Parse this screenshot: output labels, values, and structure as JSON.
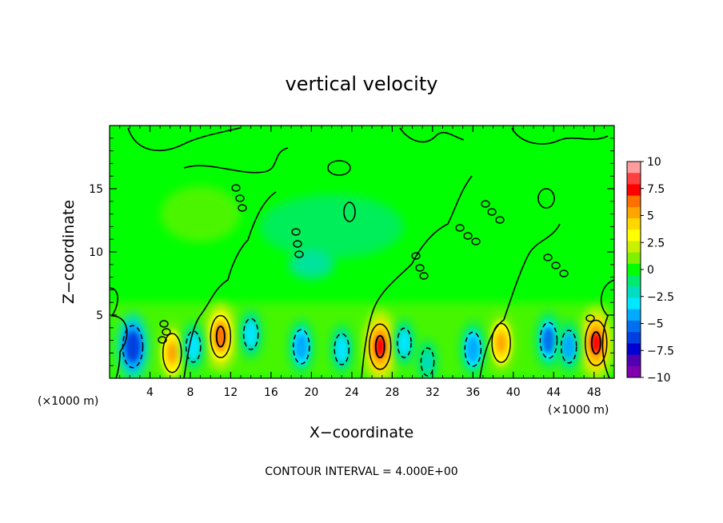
{
  "chart_data": {
    "type": "heatmap",
    "title": "vertical velocity",
    "xlabel": "X−coordinate",
    "ylabel": "Z−coordinate",
    "x_unit_left": "(×1000 m)",
    "x_unit_right": "(×1000 m)",
    "footer": "CONTOUR INTERVAL = 4.000E+00",
    "xlim": [
      0,
      50
    ],
    "ylim": [
      0,
      20
    ],
    "x_ticks": [
      4,
      8,
      12,
      16,
      20,
      24,
      28,
      32,
      36,
      40,
      44,
      48
    ],
    "x_tick_labels": [
      "4",
      "8",
      "12",
      "16",
      "20",
      "24",
      "28",
      "32",
      "36",
      "40",
      "44",
      "48"
    ],
    "y_ticks": [
      5,
      10,
      15
    ],
    "y_tick_labels": [
      "5",
      "10",
      "15"
    ],
    "colorbar": {
      "range": [
        -10,
        10
      ],
      "tick_labels": [
        "10",
        "7.5",
        "5",
        "2.5",
        "0",
        "−2.5",
        "−5",
        "−7.5",
        "−10"
      ],
      "colors": [
        "#ff9d9d",
        "#ff4040",
        "#ff0000",
        "#ff7000",
        "#ffa500",
        "#ffd800",
        "#ffff00",
        "#c8f000",
        "#7ef000",
        "#00ff00",
        "#00ea70",
        "#00ddc0",
        "#00e8ff",
        "#00aaff",
        "#0070f0",
        "#0040e0",
        "#0000d0",
        "#5000b0",
        "#8000b0"
      ]
    },
    "features": [
      {
        "kind": "updraft",
        "x": 6.2,
        "z": 2.0,
        "peak": 6
      },
      {
        "kind": "updraft",
        "x": 11.0,
        "z": 3.3,
        "peak": 7
      },
      {
        "kind": "updraft",
        "x": 26.8,
        "z": 2.5,
        "peak": 8
      },
      {
        "kind": "updraft",
        "x": 38.8,
        "z": 2.8,
        "peak": 6
      },
      {
        "kind": "updraft",
        "x": 48.2,
        "z": 2.8,
        "peak": 8
      },
      {
        "kind": "downdraft",
        "x": 2.3,
        "z": 2.5,
        "peak": -7
      },
      {
        "kind": "downdraft",
        "x": 8.3,
        "z": 2.5,
        "peak": -3.5
      },
      {
        "kind": "downdraft",
        "x": 14.0,
        "z": 3.5,
        "peak": -3.5
      },
      {
        "kind": "downdraft",
        "x": 19.0,
        "z": 2.5,
        "peak": -4.5
      },
      {
        "kind": "downdraft",
        "x": 23.0,
        "z": 2.3,
        "peak": -3.5
      },
      {
        "kind": "downdraft",
        "x": 29.2,
        "z": 2.8,
        "peak": -3
      },
      {
        "kind": "downdraft",
        "x": 31.5,
        "z": 1.3,
        "peak": -2.5
      },
      {
        "kind": "downdraft",
        "x": 36.0,
        "z": 2.3,
        "peak": -4.5
      },
      {
        "kind": "downdraft",
        "x": 43.5,
        "z": 3.0,
        "peak": -5
      },
      {
        "kind": "downdraft",
        "x": 45.5,
        "z": 2.5,
        "peak": -4
      }
    ]
  }
}
